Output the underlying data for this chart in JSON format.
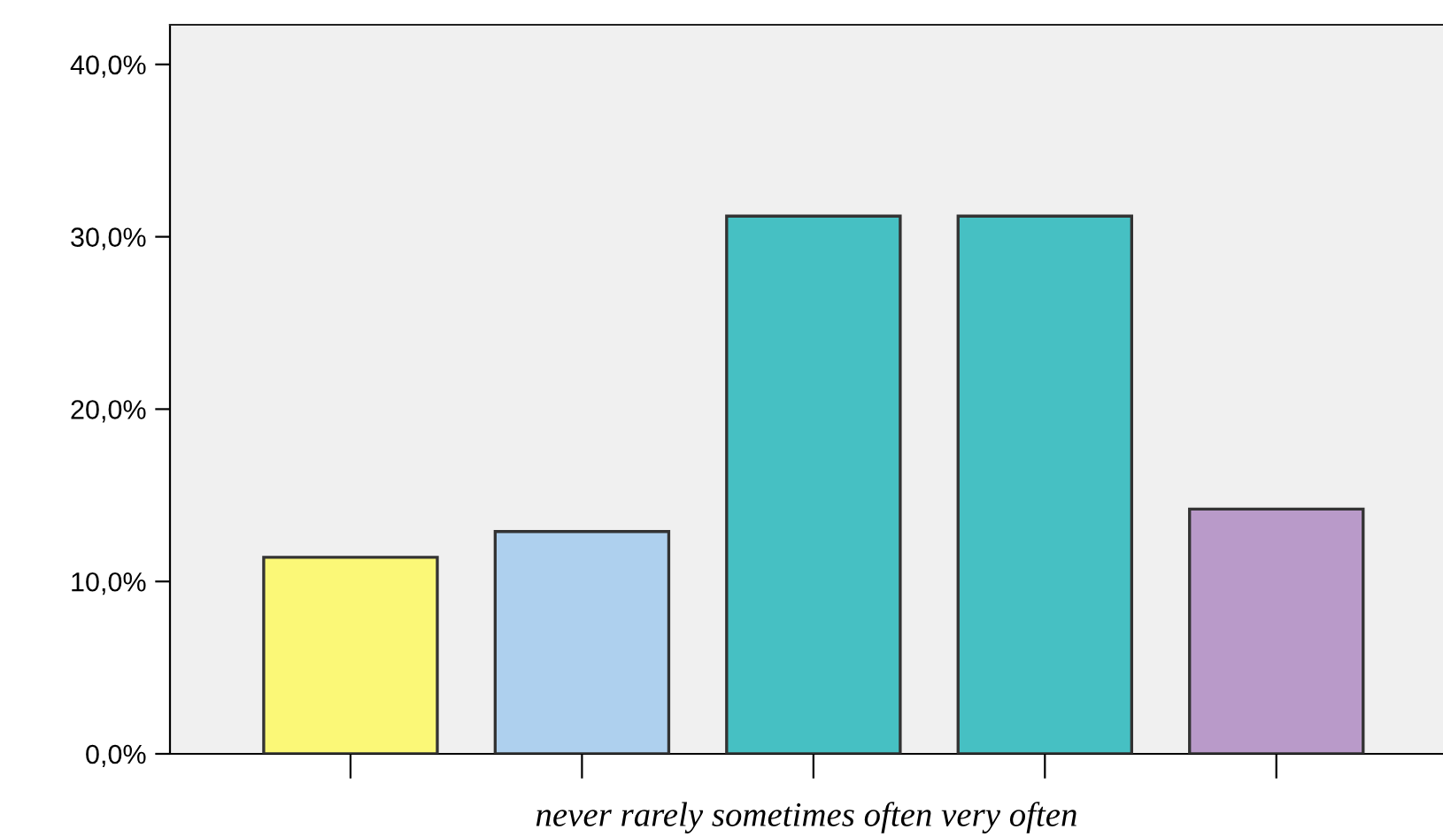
{
  "chart_data": {
    "type": "bar",
    "xlabel": "never rarely sometimes often very often",
    "categories": [
      null,
      null,
      null,
      null,
      null
    ],
    "values": [
      11.4,
      12.9,
      31.2,
      31.2,
      14.2
    ],
    "colors": [
      "#fbf877",
      "#aed0ee",
      "#46c0c3",
      "#46c0c3",
      "#b99ac9"
    ],
    "ylim": [
      0,
      42.3
    ],
    "yticks": [
      {
        "value": 0,
        "label": "0,0%"
      },
      {
        "value": 10,
        "label": "10,0%"
      },
      {
        "value": 20,
        "label": "20,0%"
      },
      {
        "value": 30,
        "label": "30,0%"
      },
      {
        "value": 40,
        "label": "40,0%"
      }
    ],
    "grid": false
  }
}
